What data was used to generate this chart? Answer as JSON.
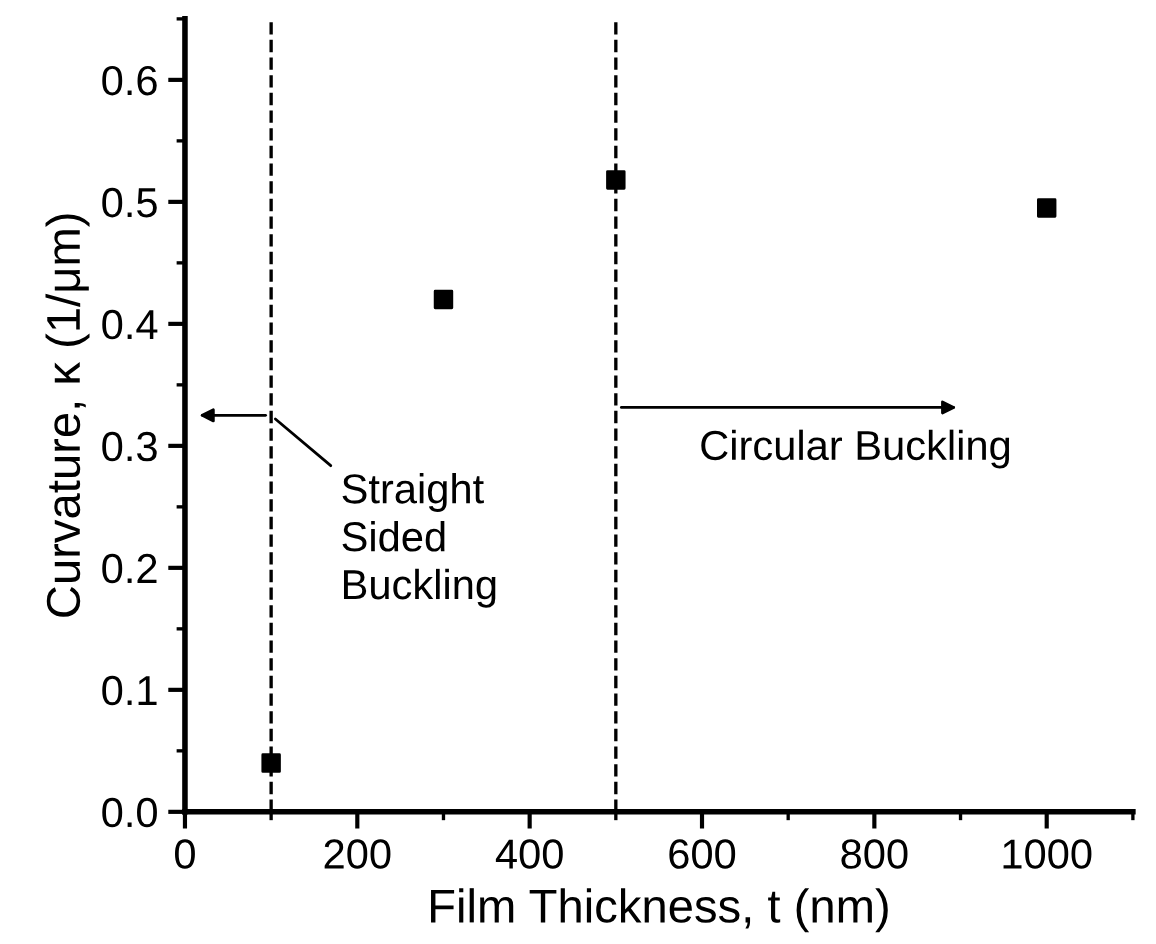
{
  "chart_data": {
    "type": "scatter",
    "xlabel": "Film Thickness, t (nm)",
    "ylabel": "Curvature, κ (1/μm)",
    "x": [
      100,
      300,
      500,
      1000
    ],
    "values": [
      0.04,
      0.42,
      0.518,
      0.495
    ],
    "color": "#000000",
    "marker": "square",
    "grid": false,
    "legend": false,
    "xlim": [
      0,
      1100
    ],
    "xticks": [
      0,
      200,
      400,
      600,
      800,
      1000
    ],
    "ylim": [
      0,
      0.65
    ],
    "yticks": [
      {
        "value": 0,
        "label": "0.0"
      },
      {
        "value": 0.1,
        "label": "0.1"
      },
      {
        "value": 0.2,
        "label": "0.2"
      },
      {
        "value": 0.3,
        "label": "0.3"
      },
      {
        "value": 0.4,
        "label": "0.4"
      },
      {
        "value": 0.5,
        "label": "0.5"
      },
      {
        "value": 0.6,
        "label": "0.6"
      }
    ],
    "ref_lines": [
      {
        "axis": "x",
        "value": 100,
        "color": "#000000",
        "line_style": "dashed"
      },
      {
        "axis": "x",
        "value": 500,
        "color": "#000000",
        "line_style": "dashed"
      }
    ],
    "annotations": [
      {
        "text": "Straight\nSided\nBuckling",
        "x": 100,
        "y": 0.325
      },
      "Circular Buckling"
    ]
  }
}
